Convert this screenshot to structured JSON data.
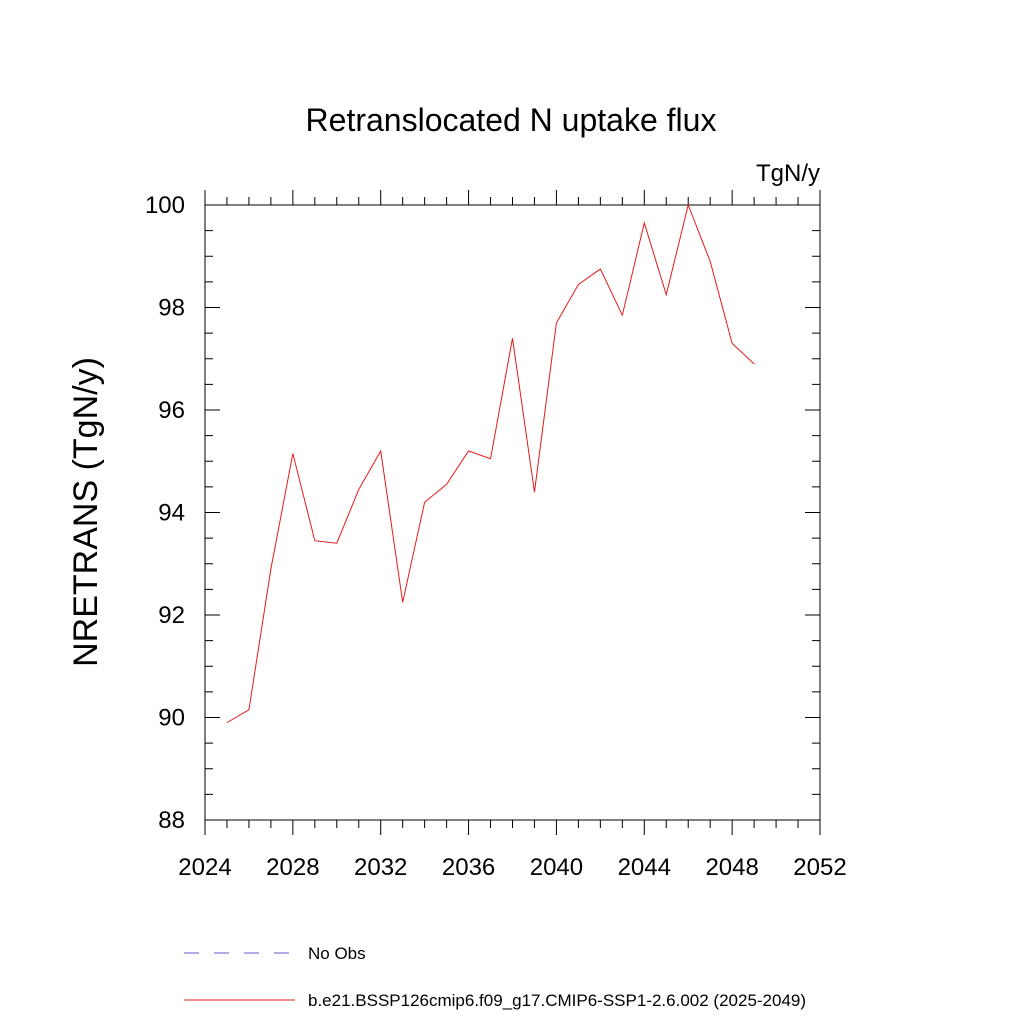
{
  "chart_data": {
    "type": "line",
    "title": "Retranslocated N uptake flux",
    "units": "TgN/y",
    "xlabel": "",
    "ylabel": "NRETRANS  (TgN/y)",
    "xlim": [
      2024,
      2052
    ],
    "ylim": [
      88,
      100
    ],
    "x_major_ticks": [
      2024,
      2028,
      2032,
      2036,
      2040,
      2044,
      2048,
      2052
    ],
    "x_tick_labels": [
      "2024",
      "2028",
      "2032",
      "2036",
      "2040",
      "2044",
      "2048",
      "2052"
    ],
    "x_minor_step": 1,
    "y_major_ticks": [
      88,
      90,
      92,
      94,
      96,
      98,
      100
    ],
    "y_tick_labels": [
      "88",
      "90",
      "92",
      "94",
      "96",
      "98",
      "100"
    ],
    "y_minor_step": 0.5,
    "grid": false,
    "legend_position": "bottom",
    "series": [
      {
        "name": "b.e21.BSSP126cmip6.f09_g17.CMIP6-SSP1-2.6.002 (2025-2049)",
        "color": "#e41a1c",
        "style": "solid",
        "x": [
          2025,
          2026,
          2027,
          2028,
          2029,
          2030,
          2031,
          2032,
          2033,
          2034,
          2035,
          2036,
          2037,
          2038,
          2039,
          2040,
          2041,
          2042,
          2043,
          2044,
          2045,
          2046,
          2047,
          2048,
          2049
        ],
        "values": [
          89.9,
          90.15,
          92.9,
          95.15,
          93.45,
          93.4,
          94.45,
          95.2,
          92.25,
          94.2,
          94.55,
          95.2,
          95.05,
          97.4,
          94.4,
          97.7,
          98.45,
          98.75,
          97.85,
          99.65,
          98.25,
          100.0,
          98.9,
          97.3,
          96.9
        ]
      }
    ],
    "legend": [
      {
        "label": "No Obs",
        "color": "#6a5acd",
        "style": "dashed"
      },
      {
        "label": "b.e21.BSSP126cmip6.f09_g17.CMIP6-SSP1-2.6.002 (2025-2049)",
        "color": "#e41a1c",
        "style": "solid"
      }
    ]
  }
}
